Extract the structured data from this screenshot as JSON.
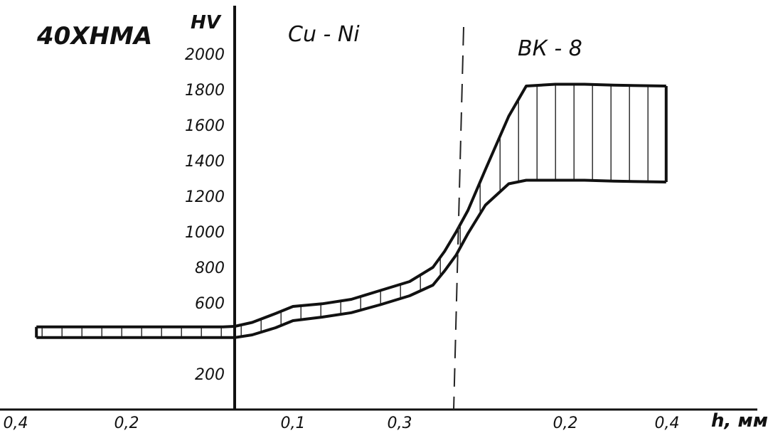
{
  "chart_data": {
    "type": "area",
    "title": "40ХНМА",
    "ylabel": "HV",
    "xlabel": "h, мм",
    "ylim": [
      0,
      2000
    ],
    "y_ticks": [
      "200",
      "600",
      "800",
      "1000",
      "1200",
      "1400",
      "1600",
      "1800",
      "2000"
    ],
    "x_ticks": [
      "0,4",
      "0,2",
      "0,1",
      "0,3",
      "0,2",
      "0,4"
    ],
    "regions": [
      "Cu - Ni",
      "ВК - 8"
    ],
    "band": {
      "x": [
        -0.34,
        -0.02,
        0.0,
        0.03,
        0.07,
        0.1,
        0.15,
        0.2,
        0.25,
        0.3,
        0.34,
        0.36,
        0.38,
        0.4,
        0.43,
        0.47,
        0.5,
        0.55,
        0.6,
        0.65,
        0.74
      ],
      "upper": [
        465,
        465,
        468,
        490,
        540,
        580,
        595,
        620,
        670,
        720,
        800,
        890,
        1000,
        1120,
        1350,
        1650,
        1820,
        1830,
        1830,
        1825,
        1820
      ],
      "lower": [
        405,
        405,
        405,
        420,
        460,
        500,
        520,
        545,
        590,
        640,
        700,
        780,
        870,
        990,
        1150,
        1270,
        1290,
        1290,
        1290,
        1285,
        1280
      ]
    }
  }
}
